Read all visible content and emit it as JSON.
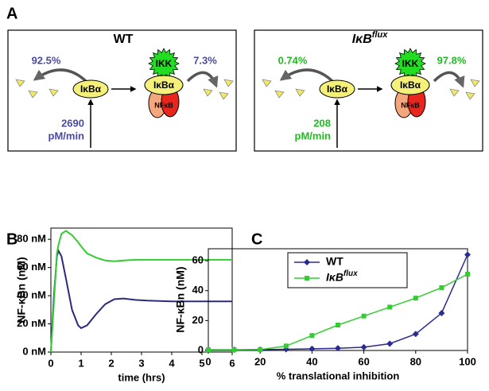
{
  "diagram": {
    "label": "A",
    "left": {
      "title": "WT",
      "color": "#4a4aa0",
      "left_pct": "92.5%",
      "right_pct": "7.3%",
      "free_ikba": "IκBα",
      "complex_ikba": "IκBα",
      "ikk": "IKK",
      "nfkb": "NFκB",
      "rate_value": 2690,
      "rate_unit": "pM/min"
    },
    "right": {
      "title": "IκB",
      "title_superscript": "flux",
      "color": "#22bb22",
      "left_pct": "0.74%",
      "right_pct": "97.8%",
      "free_ikba": "IκBα",
      "complex_ikba": "IκBα",
      "ikk": "IKK",
      "nfkb": "NFκB",
      "rate_value": 208,
      "rate_unit": "pM/min"
    }
  },
  "chart_data": [
    {
      "type": "line",
      "panel_label": "B",
      "x_label": "time (hrs)",
      "y_label": "NF-κBn (nM)",
      "x": [
        0,
        0.1,
        0.2,
        0.25,
        0.35,
        0.5,
        0.7,
        0.9,
        1.0,
        1.2,
        1.5,
        1.8,
        2.1,
        2.4,
        2.8,
        3.2,
        4,
        5,
        6
      ],
      "series": [
        {
          "color": "#2a2a80",
          "values": [
            0,
            40,
            68,
            72,
            68,
            52,
            30,
            19,
            17,
            19,
            27,
            34,
            37.5,
            38,
            37,
            36.5,
            36,
            36,
            36
          ]
        },
        {
          "color": "#33cc33",
          "values": [
            0,
            35,
            70,
            76,
            84,
            86,
            83,
            78,
            75,
            70,
            67,
            65,
            64.5,
            65,
            65.5,
            65.5,
            65.5,
            65.5,
            65.5
          ]
        }
      ],
      "xlim": [
        0,
        6
      ],
      "xticks": [
        0,
        1,
        2,
        3,
        4,
        5,
        6
      ],
      "ylim": [
        0,
        88
      ],
      "yticks": [
        {
          "value": 0,
          "label": "0 nM"
        },
        {
          "value": 20,
          "label": "20 nM"
        },
        {
          "value": 40,
          "label": "40 nM"
        },
        {
          "value": 60,
          "label": "60 nM"
        },
        {
          "value": 80,
          "label": "80 nM"
        }
      ]
    },
    {
      "type": "line",
      "panel_label": "C",
      "x_label": "% translational inhibition",
      "y_label": "NF-κBn (nM)",
      "x": [
        0,
        10,
        20,
        30,
        40,
        50,
        60,
        70,
        80,
        90,
        100
      ],
      "series": [
        {
          "name": "WT",
          "color": "#2a2a90",
          "marker": "diamond",
          "values": [
            0.5,
            0.5,
            0.6,
            0.8,
            1.1,
            1.5,
            2.2,
            4.5,
            11,
            25,
            64
          ]
        },
        {
          "name": "IκB",
          "name_superscript": "flux",
          "color": "#33cc33",
          "marker": "square",
          "values": [
            0.5,
            0.5,
            0.6,
            3,
            10,
            17,
            23,
            29,
            35,
            42,
            51
          ]
        }
      ],
      "xlim": [
        0,
        100
      ],
      "xticks": [
        0,
        20,
        40,
        60,
        80,
        100
      ],
      "ylim": [
        0,
        68
      ],
      "yticks": [
        0,
        20,
        40,
        60
      ],
      "legend": "upper left"
    }
  ]
}
